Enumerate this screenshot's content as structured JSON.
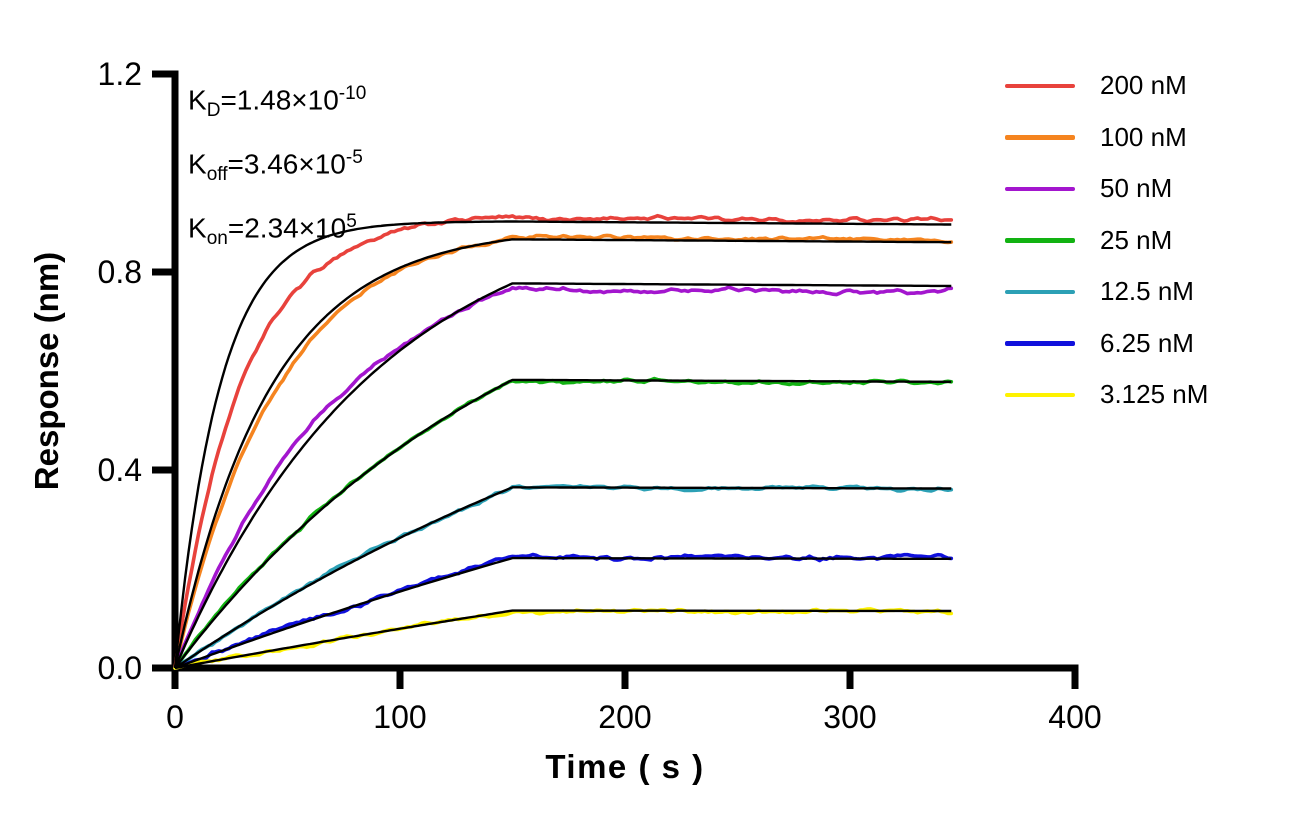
{
  "chart_data": {
    "type": "line",
    "title": "",
    "xlabel": "Time ( s )",
    "ylabel": "Response (nm)",
    "xlim": [
      0,
      400
    ],
    "ylim": [
      0,
      1.2
    ],
    "x_ticks": [
      {
        "label": "0",
        "value": 0
      },
      {
        "label": "100",
        "value": 100
      },
      {
        "label": "200",
        "value": 200
      },
      {
        "label": "300",
        "value": 300
      },
      {
        "label": "400",
        "value": 400
      }
    ],
    "y_ticks": [
      {
        "label": "0.0",
        "value": 0.0
      },
      {
        "label": "0.4",
        "value": 0.4
      },
      {
        "label": "0.8",
        "value": 0.8
      },
      {
        "label": "1.2",
        "value": 1.2
      }
    ],
    "grid": false,
    "legend_position": "right-outside",
    "association_end_s": 150,
    "trace_end_s": 345,
    "koff_decay_per_s": 3.46e-05,
    "fit_color": "#000000",
    "annotations": [
      {
        "k": "K",
        "sub": "D",
        "eq": "=1.48×10",
        "exp": "-10"
      },
      {
        "k": "K",
        "sub": "off",
        "eq": "=3.46×10",
        "exp": "-5"
      },
      {
        "k": "K",
        "sub": "on",
        "eq": "=2.34×10",
        "exp": "5"
      }
    ],
    "series": [
      {
        "label": "200 nM",
        "color": "#E8423C",
        "plateau_nm": 0.91,
        "tau_s": 30,
        "fit_tau_s": 20,
        "fit_offset_nm": -0.008,
        "noise_nm": 0.006
      },
      {
        "label": "100 nM",
        "color": "#F5841F",
        "plateau_nm": 0.87,
        "tau_s": 46,
        "fit_tau_s": 42,
        "fit_offset_nm": -0.004,
        "noise_nm": 0.005
      },
      {
        "label": "50 nM",
        "color": "#A316CE",
        "plateau_nm": 0.765,
        "tau_s": 75,
        "fit_tau_s": 91,
        "fit_offset_nm": 0.012,
        "noise_nm": 0.006
      },
      {
        "label": "25 nM",
        "color": "#12B212",
        "plateau_nm": 0.58,
        "tau_s": 150,
        "fit_tau_s": 158,
        "fit_offset_nm": 0.002,
        "noise_nm": 0.005
      },
      {
        "label": "12.5 nM",
        "color": "#2CA0B5",
        "plateau_nm": 0.365,
        "tau_s": 280,
        "fit_tau_s": 300,
        "fit_offset_nm": 0.0,
        "noise_nm": 0.005
      },
      {
        "label": "6.25 nM",
        "color": "#1010DC",
        "plateau_nm": 0.225,
        "tau_s": 520,
        "fit_tau_s": 560,
        "fit_offset_nm": -0.003,
        "noise_nm": 0.007
      },
      {
        "label": "3.125 nM",
        "color": "#FEF200",
        "plateau_nm": 0.115,
        "tau_s": 900,
        "fit_tau_s": 960,
        "fit_offset_nm": 0.001,
        "noise_nm": 0.005
      }
    ]
  }
}
